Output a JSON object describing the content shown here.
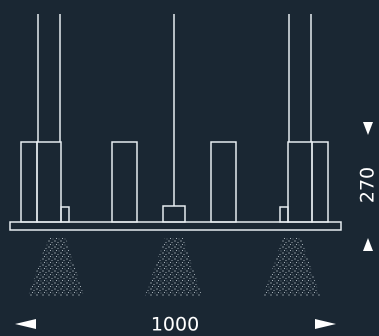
{
  "diagram": {
    "width_label": "1000",
    "height_label": "270",
    "colors": {
      "background": "#1a2733",
      "line": "#e8eef2",
      "light_cone": "#c8d2d8"
    },
    "icons": [
      "arrow-left-icon",
      "arrow-right-icon",
      "arrow-up-icon",
      "arrow-down-icon"
    ]
  }
}
